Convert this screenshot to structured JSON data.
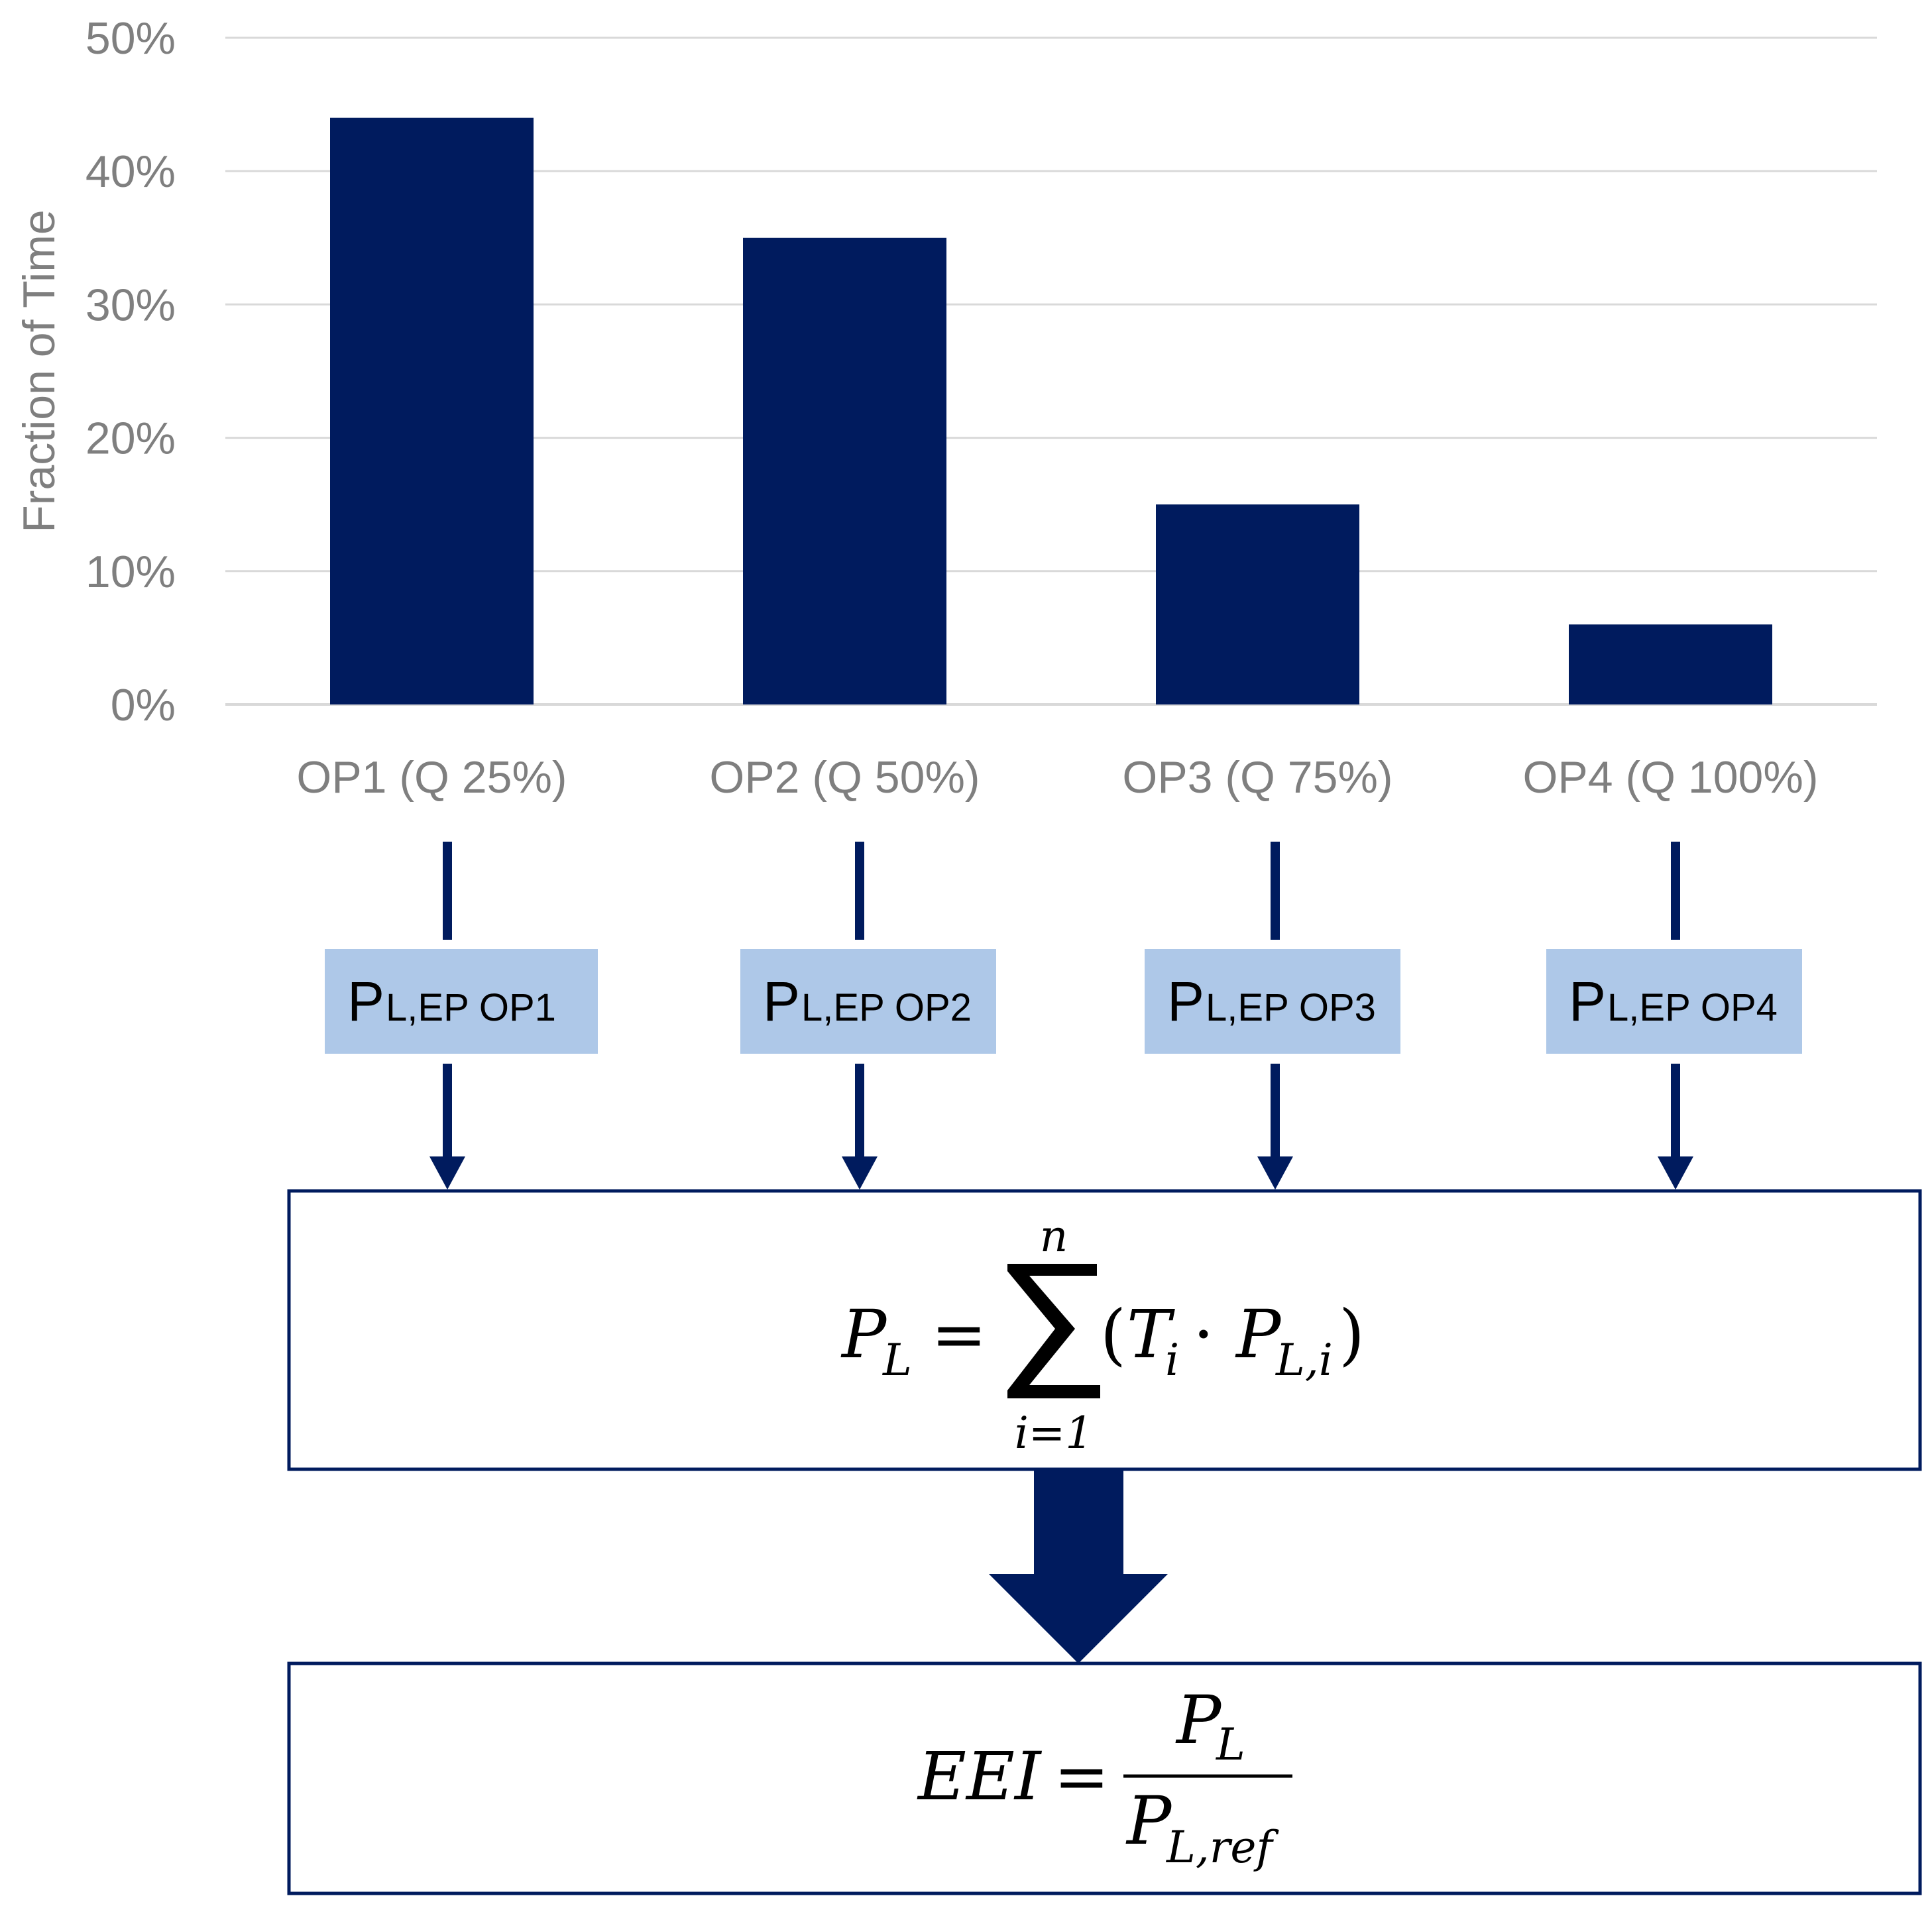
{
  "chart_data": {
    "type": "bar",
    "categories": [
      "OP1 (Q 25%)",
      "OP2 (Q 50%)",
      "OP3 (Q 75%)",
      "OP4 (Q 100%)"
    ],
    "values": [
      44,
      35,
      15,
      6
    ],
    "ylabel": "Fraction of Time",
    "ylim": [
      0,
      50
    ],
    "yticks": [
      "0%",
      "10%",
      "20%",
      "30%",
      "40%",
      "50%"
    ],
    "grid": true,
    "bar_color": "#001b5e"
  },
  "power_boxes": [
    {
      "main": "P",
      "sub": "L,EP OP1"
    },
    {
      "main": "P",
      "sub": "L,EP OP2"
    },
    {
      "main": "P",
      "sub": "L,EP OP3"
    },
    {
      "main": "P",
      "sub": "L,EP OP4"
    }
  ],
  "formula_sum": {
    "lhs": "P",
    "lhs_sub": "L",
    "equals": "=",
    "upper": "n",
    "lower": "i=1",
    "open": "(",
    "t": "T",
    "t_sub": "i",
    "dot": "·",
    "p": "P",
    "p_sub": "L,i",
    "close": ")"
  },
  "formula_eei": {
    "lhs": "EEI",
    "equals": "=",
    "num": "P",
    "num_sub": "L",
    "den": "P",
    "den_sub": "L,ref"
  },
  "colors": {
    "navy": "#001b5e",
    "box_fill": "#aec8e8",
    "grid": "#d9d9d9",
    "tick_text": "#7f7f7f"
  }
}
